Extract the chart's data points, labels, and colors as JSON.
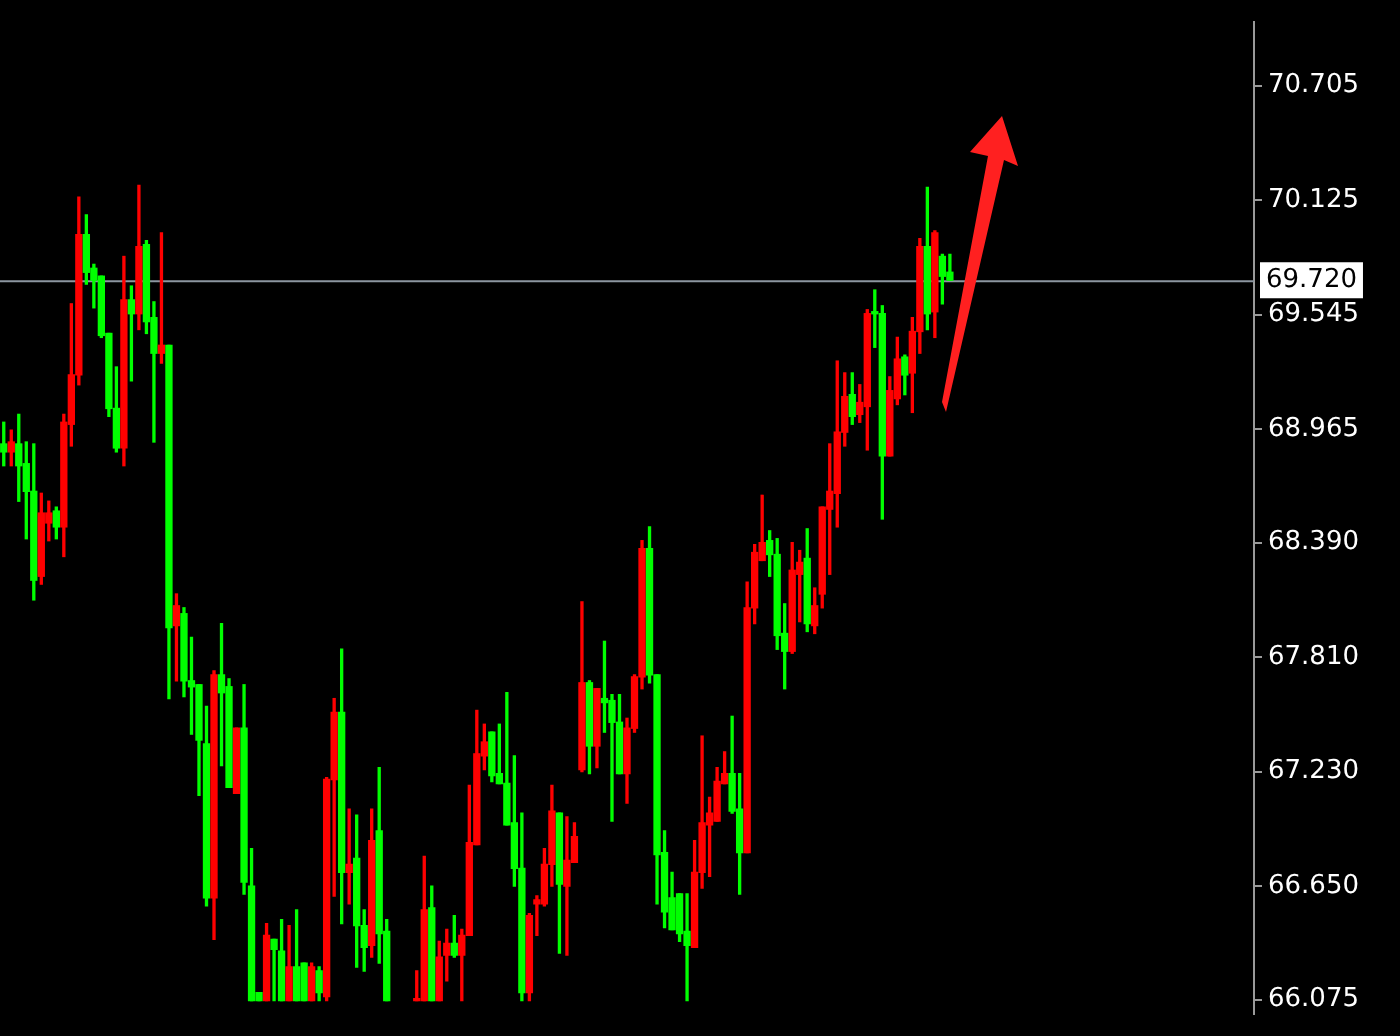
{
  "chart_data": {
    "type": "candlestick",
    "categories": [
      null,
      null,
      null,
      null,
      null,
      null,
      null,
      null,
      null,
      null,
      null,
      null,
      null,
      null,
      null,
      null,
      null,
      null,
      null,
      null,
      null,
      null,
      null,
      null,
      null,
      null,
      null,
      null,
      null,
      null,
      null,
      null,
      null,
      null,
      null,
      null,
      null,
      null,
      null,
      null,
      null,
      null,
      null,
      null,
      null,
      null,
      null,
      null,
      null,
      null,
      null,
      null,
      null,
      null,
      null,
      null,
      null,
      null,
      null,
      null,
      null,
      null,
      null,
      null,
      null,
      null,
      null,
      null,
      null,
      null,
      null,
      null,
      null,
      null,
      null,
      null,
      null,
      null,
      null,
      null,
      null,
      null,
      null,
      null,
      null,
      null,
      null,
      null,
      null,
      null,
      null,
      null,
      null,
      null,
      null,
      null,
      null,
      null,
      null,
      null,
      null,
      null,
      null,
      null,
      null,
      null,
      null,
      null,
      null,
      null,
      null,
      null,
      null,
      null,
      null,
      null,
      null,
      null,
      null,
      null,
      null,
      null,
      null,
      null,
      null,
      null,
      null,
      null,
      null,
      null,
      null,
      null,
      null,
      null,
      null,
      null,
      null,
      null,
      null,
      null,
      null,
      null,
      null,
      null,
      null,
      null,
      null,
      null,
      null,
      null,
      null,
      null,
      null,
      null,
      null,
      null,
      null,
      null,
      null,
      null,
      null,
      null,
      null,
      null,
      null,
      null,
      null
    ],
    "ohlc": [
      [
        68.89,
        69.0,
        68.78,
        68.85
      ],
      [
        68.85,
        68.96,
        68.78,
        68.9
      ],
      [
        68.89,
        69.04,
        68.6,
        68.78
      ],
      [
        68.79,
        68.9,
        68.41,
        68.65
      ],
      [
        68.65,
        68.89,
        68.1,
        68.2
      ],
      [
        68.22,
        68.64,
        68.18,
        68.54
      ],
      [
        68.49,
        68.6,
        68.4,
        68.54
      ],
      [
        68.55,
        68.57,
        68.41,
        68.47
      ],
      [
        68.47,
        69.04,
        68.32,
        69.0
      ],
      [
        68.99,
        69.6,
        68.88,
        69.24
      ],
      [
        69.24,
        70.14,
        69.19,
        69.95
      ],
      [
        69.95,
        70.05,
        69.7,
        69.76
      ],
      [
        69.78,
        69.8,
        69.58,
        69.72
      ],
      [
        69.74,
        69.74,
        69.43,
        69.44
      ],
      [
        69.45,
        69.45,
        69.03,
        69.07
      ],
      [
        69.07,
        69.28,
        68.85,
        68.87
      ],
      [
        68.87,
        69.84,
        68.78,
        69.62
      ],
      [
        69.62,
        69.69,
        69.21,
        69.55
      ],
      [
        69.55,
        70.2,
        69.47,
        69.89
      ],
      [
        69.9,
        69.92,
        69.45,
        69.51
      ],
      [
        69.53,
        69.61,
        68.9,
        69.35
      ],
      [
        69.35,
        69.96,
        69.3,
        69.39
      ],
      [
        69.39,
        69.39,
        67.6,
        67.96
      ],
      [
        67.97,
        68.13,
        67.69,
        68.07
      ],
      [
        68.03,
        68.06,
        67.61,
        67.69
      ],
      [
        67.69,
        67.91,
        67.42,
        67.66
      ],
      [
        67.67,
        67.67,
        67.11,
        67.39
      ],
      [
        67.37,
        67.56,
        66.55,
        66.59
      ],
      [
        66.59,
        67.74,
        66.38,
        67.72
      ],
      [
        67.72,
        67.98,
        67.26,
        67.63
      ],
      [
        67.66,
        67.7,
        67.15,
        67.15
      ],
      [
        67.12,
        67.45,
        67.12,
        67.45
      ],
      [
        67.45,
        67.67,
        66.61,
        66.67
      ],
      [
        66.65,
        66.84,
        66.07,
        66.07
      ],
      [
        66.11,
        66.11,
        66.07,
        66.07
      ],
      [
        66.07,
        66.46,
        66.07,
        66.4
      ],
      [
        66.38,
        66.38,
        66.07,
        66.33
      ],
      [
        66.32,
        66.48,
        66.07,
        66.07
      ],
      [
        66.07,
        66.45,
        66.07,
        66.24
      ],
      [
        66.24,
        66.53,
        66.07,
        66.07
      ],
      [
        66.26,
        66.26,
        66.07,
        66.07
      ],
      [
        66.07,
        66.26,
        66.07,
        66.24
      ],
      [
        66.22,
        66.24,
        66.07,
        66.11
      ],
      [
        66.09,
        67.2,
        66.07,
        67.19
      ],
      [
        67.19,
        67.6,
        66.6,
        67.53
      ],
      [
        67.53,
        67.85,
        66.46,
        66.72
      ],
      [
        66.72,
        67.04,
        66.56,
        66.76
      ],
      [
        66.79,
        67.01,
        66.24,
        66.45
      ],
      [
        66.45,
        66.53,
        66.22,
        66.34
      ],
      [
        66.35,
        67.04,
        66.29,
        66.88
      ],
      [
        66.93,
        67.25,
        66.26,
        66.41
      ],
      [
        66.42,
        66.48,
        66.07,
        66.07
      ],
      null,
      null,
      null,
      [
        66.07,
        66.22,
        66.07,
        66.08
      ],
      [
        66.07,
        66.8,
        66.07,
        66.53
      ],
      [
        66.54,
        66.65,
        66.07,
        66.07
      ],
      [
        66.07,
        66.37,
        66.07,
        66.29
      ],
      [
        66.3,
        66.43,
        66.17,
        66.36
      ],
      [
        66.36,
        66.5,
        66.29,
        66.3
      ],
      [
        66.3,
        66.43,
        66.07,
        66.4
      ],
      [
        66.4,
        67.16,
        66.4,
        66.87
      ],
      [
        66.86,
        67.54,
        66.86,
        67.32
      ],
      [
        67.31,
        67.47,
        67.24,
        67.38
      ],
      [
        67.43,
        67.43,
        67.18,
        67.21
      ],
      [
        67.22,
        67.47,
        67.17,
        67.17
      ],
      [
        67.17,
        67.63,
        66.96,
        66.96
      ],
      [
        66.97,
        67.31,
        66.65,
        66.74
      ],
      [
        66.74,
        67.02,
        66.07,
        66.11
      ],
      [
        66.11,
        66.51,
        66.07,
        66.5
      ],
      [
        66.56,
        66.6,
        66.4,
        66.58
      ],
      [
        66.56,
        66.84,
        66.55,
        66.76
      ],
      [
        66.76,
        67.16,
        66.65,
        67.03
      ],
      [
        67.02,
        67.02,
        66.31,
        66.66
      ],
      [
        66.65,
        67.0,
        66.3,
        66.78
      ],
      [
        66.77,
        66.97,
        66.77,
        66.9
      ],
      [
        67.24,
        68.09,
        67.23,
        67.68
      ],
      [
        67.68,
        67.69,
        67.22,
        67.36
      ],
      [
        67.36,
        67.65,
        67.25,
        67.65
      ],
      [
        67.6,
        67.89,
        67.43,
        67.58
      ],
      [
        67.59,
        67.62,
        66.98,
        67.48
      ],
      [
        67.48,
        67.62,
        67.22,
        67.22
      ],
      [
        67.22,
        67.5,
        67.07,
        67.45
      ],
      [
        67.45,
        67.72,
        67.43,
        67.71
      ],
      [
        67.71,
        68.4,
        67.65,
        68.36
      ],
      [
        68.36,
        68.47,
        67.68,
        67.72
      ],
      [
        67.72,
        67.72,
        66.56,
        66.81
      ],
      [
        66.82,
        66.93,
        66.44,
        66.52
      ],
      [
        66.59,
        66.72,
        66.43,
        66.43
      ],
      [
        66.61,
        66.61,
        66.37,
        66.41
      ],
      [
        66.42,
        66.61,
        66.07,
        66.35
      ],
      [
        66.34,
        66.88,
        66.34,
        66.72
      ],
      [
        66.72,
        67.41,
        66.64,
        66.97
      ],
      [
        66.96,
        67.1,
        66.7,
        67.02
      ],
      [
        66.98,
        67.25,
        66.98,
        67.18
      ],
      [
        67.17,
        67.33,
        67.17,
        67.22
      ],
      [
        67.22,
        67.51,
        67.02,
        67.03
      ],
      [
        67.04,
        67.22,
        66.61,
        66.82
      ],
      [
        66.82,
        68.19,
        66.82,
        68.06
      ],
      [
        68.06,
        68.38,
        67.98,
        68.34
      ],
      [
        68.3,
        68.63,
        68.3,
        68.39
      ],
      [
        68.4,
        68.45,
        68.22,
        68.33
      ],
      [
        68.33,
        68.41,
        67.85,
        67.92
      ],
      [
        67.93,
        68.08,
        67.65,
        67.84
      ],
      [
        67.84,
        68.39,
        67.83,
        68.25
      ],
      [
        68.23,
        68.35,
        67.99,
        68.29
      ],
      [
        68.31,
        68.46,
        67.94,
        67.98
      ],
      [
        67.97,
        68.16,
        67.93,
        68.07
      ],
      [
        68.13,
        68.57,
        68.06,
        68.57
      ],
      [
        68.56,
        68.89,
        68.23,
        68.65
      ],
      [
        68.64,
        69.31,
        68.47,
        68.95
      ],
      [
        68.95,
        69.25,
        68.88,
        69.13
      ],
      [
        69.14,
        69.25,
        68.99,
        69.03
      ],
      [
        69.04,
        69.19,
        69.0,
        69.1
      ],
      [
        69.08,
        69.57,
        68.86,
        69.55
      ],
      [
        69.56,
        69.67,
        69.38,
        69.55
      ],
      [
        69.55,
        69.59,
        68.51,
        68.83
      ],
      [
        68.83,
        69.23,
        68.83,
        69.16
      ],
      [
        69.12,
        69.43,
        69.09,
        69.32
      ],
      [
        69.33,
        69.34,
        69.14,
        69.24
      ],
      [
        69.25,
        69.53,
        69.05,
        69.46
      ],
      [
        69.46,
        69.93,
        69.35,
        69.89
      ],
      [
        69.89,
        70.19,
        69.47,
        69.55
      ],
      [
        69.56,
        69.97,
        69.43,
        69.96
      ],
      [
        69.84,
        69.85,
        69.6,
        69.74
      ],
      [
        69.76,
        69.85,
        69.72,
        69.72
      ],
      null,
      null,
      null,
      null,
      null,
      null,
      null,
      null,
      null,
      null,
      null,
      null,
      null,
      null,
      null,
      null,
      null,
      null,
      null,
      null,
      null,
      null,
      null,
      null,
      null,
      null,
      null,
      null,
      null,
      null,
      null,
      null,
      null,
      null,
      null,
      null,
      null,
      null,
      null,
      null
    ],
    "colors": [
      "#00ff00",
      "#ff0000",
      "#00ff00",
      "#00ff00",
      "#00ff00",
      "#ff0000",
      "#ff0000",
      "#00ff00",
      "#ff0000",
      "#ff0000",
      "#ff0000",
      "#00ff00",
      "#00ff00",
      "#00ff00",
      "#00ff00",
      "#00ff00",
      "#ff0000",
      "#00ff00",
      "#ff0000",
      "#00ff00",
      "#00ff00",
      "#ff0000",
      "#00ff00",
      "#ff0000",
      "#00ff00",
      "#00ff00",
      "#00ff00",
      "#00ff00",
      "#ff0000",
      "#00ff00",
      "#00ff00",
      "#ff0000",
      "#00ff00",
      "#00ff00",
      "#00ff00",
      "#ff0000",
      "#00ff00",
      "#00ff00",
      "#ff0000",
      "#00ff00",
      "#00ff00",
      "#ff0000",
      "#00ff00",
      "#ff0000",
      "#ff0000",
      "#00ff00",
      "#ff0000",
      "#00ff00",
      "#00ff00",
      "#ff0000",
      "#00ff00",
      "#00ff00",
      null,
      null,
      null,
      "#ff0000",
      "#ff0000",
      "#00ff00",
      "#ff0000",
      "#ff0000",
      "#00ff00",
      "#ff0000",
      "#ff0000",
      "#ff0000",
      "#ff0000",
      "#00ff00",
      "#00ff00",
      "#00ff00",
      "#00ff00",
      "#00ff00",
      "#ff0000",
      "#ff0000",
      "#ff0000",
      "#ff0000",
      "#00ff00",
      "#ff0000",
      "#ff0000",
      "#ff0000",
      "#00ff00",
      "#ff0000",
      "#00ff00",
      "#00ff00",
      "#00ff00",
      "#ff0000",
      "#ff0000",
      "#ff0000",
      "#00ff00",
      "#00ff00",
      "#00ff00",
      "#00ff00",
      "#00ff00",
      "#00ff00",
      "#ff0000",
      "#ff0000",
      "#ff0000",
      "#ff0000",
      "#ff0000",
      "#00ff00",
      "#00ff00",
      "#ff0000",
      "#ff0000",
      "#ff0000",
      "#00ff00",
      "#00ff00",
      "#00ff00",
      "#ff0000",
      "#ff0000",
      "#00ff00",
      "#ff0000",
      "#ff0000",
      "#ff0000",
      "#ff0000",
      "#ff0000",
      "#00ff00",
      "#ff0000",
      "#ff0000",
      "#00ff00",
      "#00ff00",
      "#ff0000",
      "#ff0000",
      "#00ff00",
      "#ff0000",
      "#ff0000",
      "#00ff00",
      "#ff0000",
      "#00ff00",
      "#00ff00",
      null,
      null,
      null,
      null,
      null,
      null,
      null,
      null,
      null,
      null,
      null,
      null,
      null,
      null,
      null,
      null,
      null,
      null,
      null,
      null,
      null,
      null,
      null,
      null,
      null,
      null,
      null,
      null,
      null,
      null,
      null,
      null,
      null,
      null,
      null,
      null,
      null,
      null,
      null,
      null
    ],
    "ylim": [
      66.0,
      71.03
    ],
    "yticks": [
      70.705,
      70.125,
      69.545,
      68.965,
      {
        "value": 68.39,
        "label": "68.390"
      },
      {
        "value": 67.81,
        "label": "67.810"
      },
      {
        "value": 67.23,
        "label": "67.230"
      },
      {
        "value": 66.65,
        "label": "66.650"
      },
      66.075
    ],
    "ref_lines": [
      {
        "axis": "y",
        "value": 69.72,
        "label": "69.720",
        "color": "#8c96a0"
      }
    ],
    "tick_labels": "y"
  }
}
